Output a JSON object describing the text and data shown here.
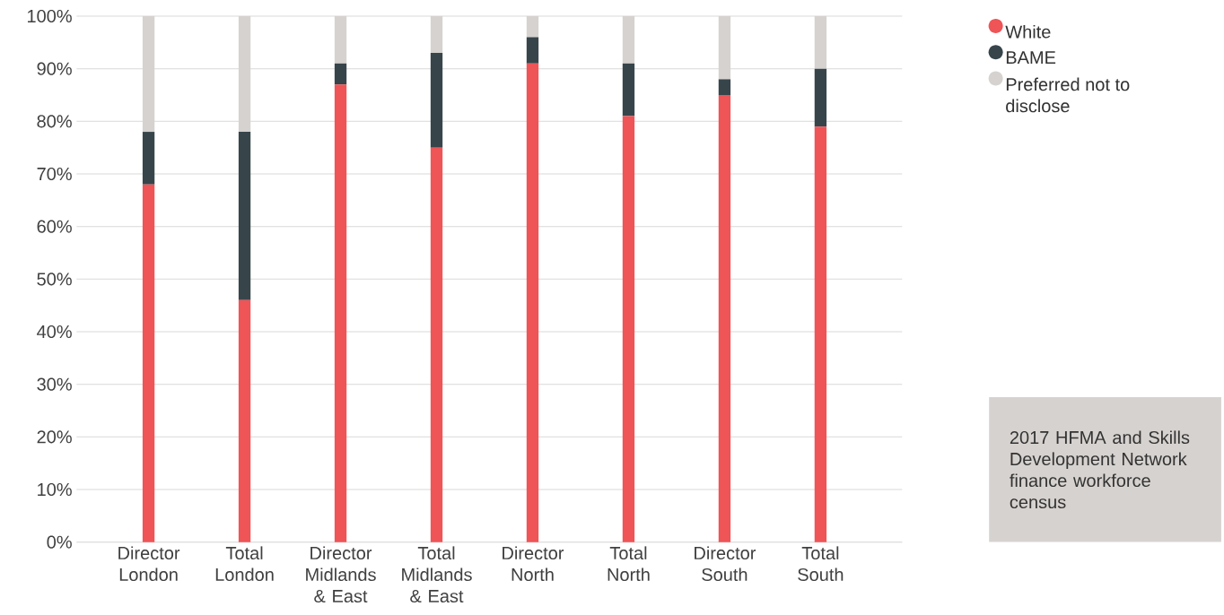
{
  "chart_data": {
    "type": "bar",
    "stacked": true,
    "categories": [
      "Director London",
      "Total London",
      "Director Midlands & East",
      "Total Midlands & East",
      "Director North",
      "Total North",
      "Director South",
      "Total South"
    ],
    "series": [
      {
        "name": "White",
        "color": "#ef5457",
        "values": [
          68,
          46,
          87,
          75,
          91,
          81,
          85,
          79
        ]
      },
      {
        "name": "BAME",
        "color": "#37454b",
        "values": [
          10,
          32,
          4,
          18,
          5,
          10,
          3,
          11
        ]
      },
      {
        "name": "Preferred not to disclose",
        "color": "#d6d2cf",
        "values": [
          22,
          22,
          9,
          7,
          4,
          9,
          12,
          10
        ]
      }
    ],
    "ylim": [
      0,
      100
    ],
    "yticks": [
      {
        "value": 0,
        "label": "0%"
      },
      {
        "value": 10,
        "label": "10%"
      },
      {
        "value": 20,
        "label": "20%"
      },
      {
        "value": 30,
        "label": "30%"
      },
      {
        "value": 40,
        "label": "40%"
      },
      {
        "value": 50,
        "label": "50%"
      },
      {
        "value": 60,
        "label": "60%"
      },
      {
        "value": 70,
        "label": "70%"
      },
      {
        "value": 80,
        "label": "80%"
      },
      {
        "value": 90,
        "label": "90%"
      },
      {
        "value": 100,
        "label": "100%"
      }
    ],
    "grid": "y",
    "legend": "right",
    "annotations": [
      "2017 HFMA and Skills Development Network finance workforce census"
    ]
  }
}
